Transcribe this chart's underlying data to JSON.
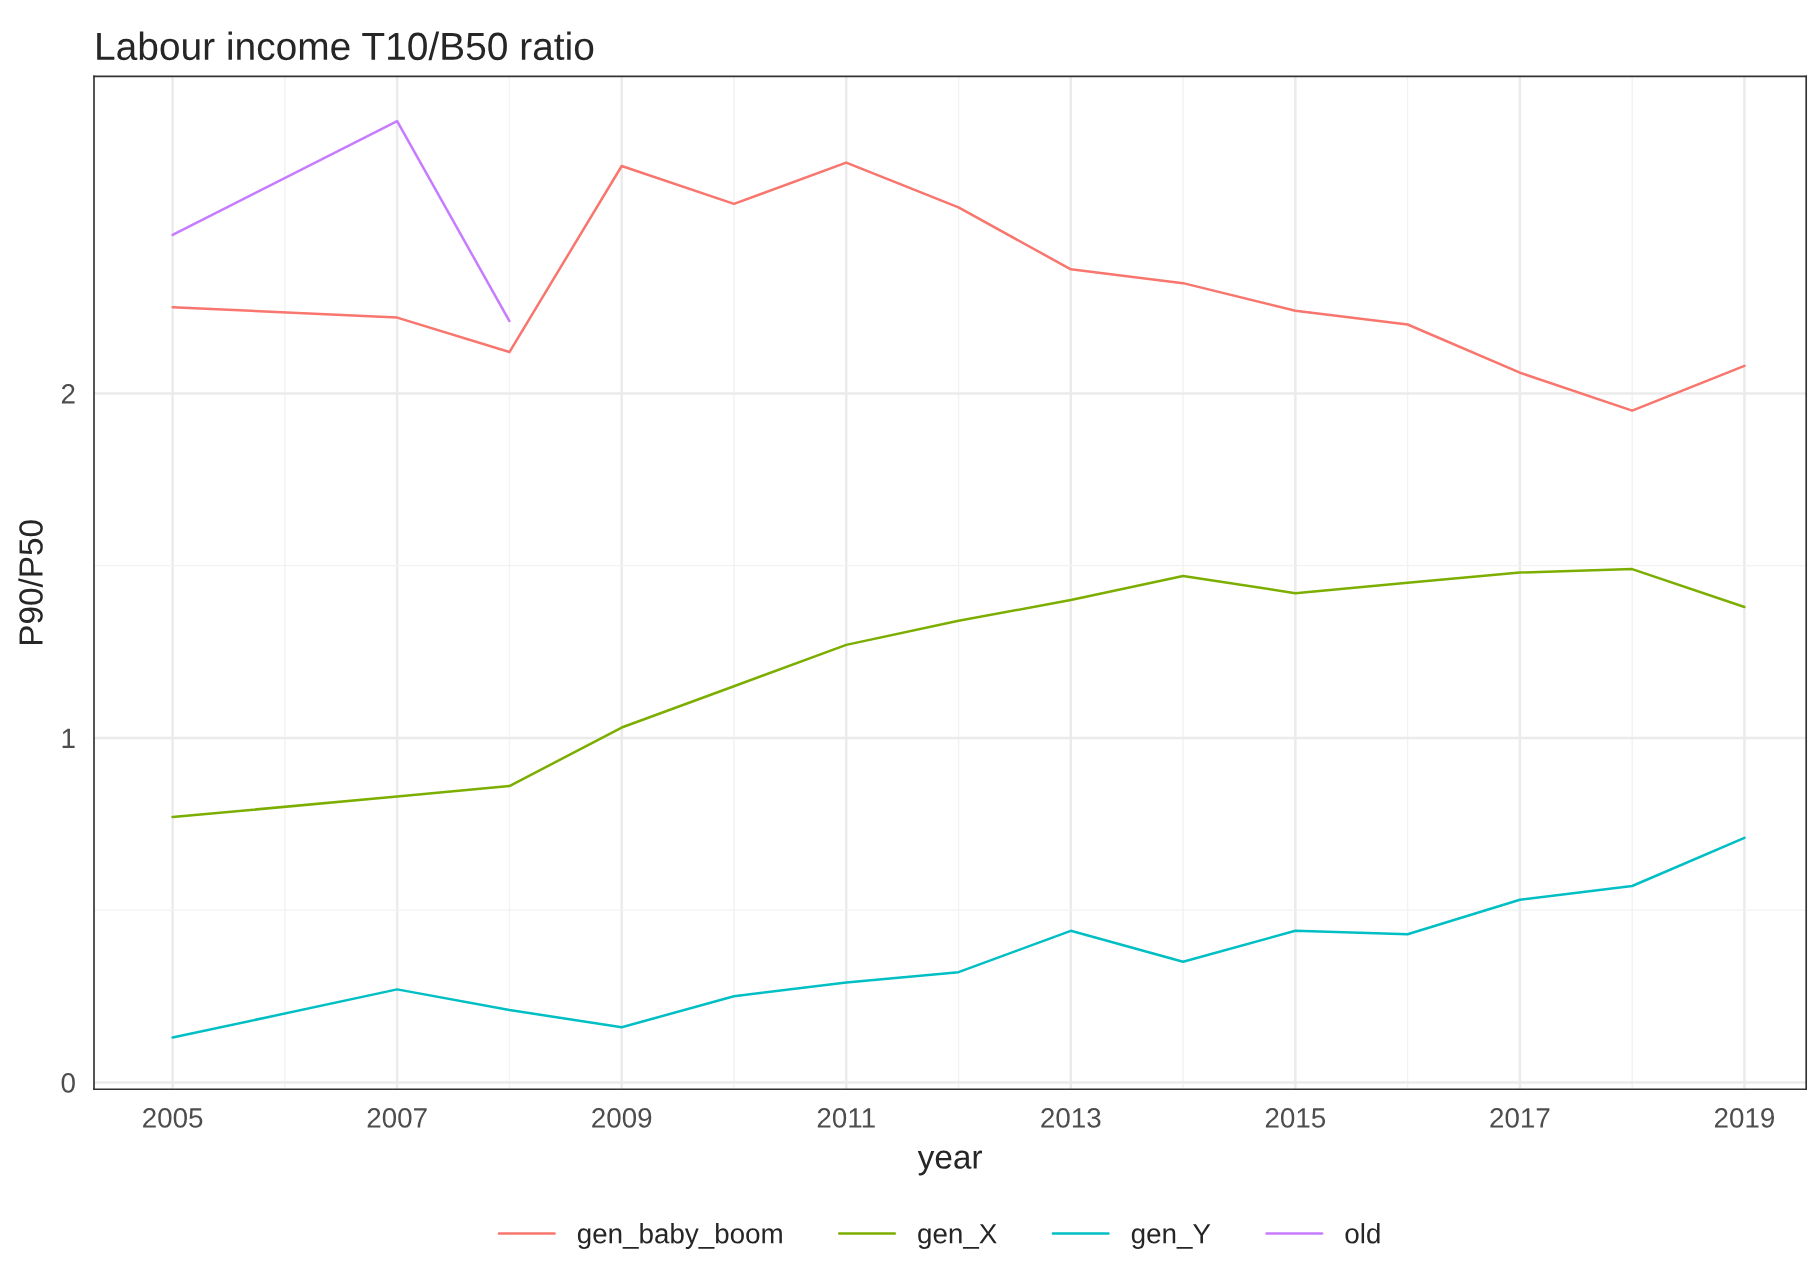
{
  "chart_data": {
    "type": "line",
    "title": "Labour income T10/B50 ratio",
    "xlabel": "year",
    "ylabel": "P90/P50",
    "xlim": [
      2004.3,
      2019.55
    ],
    "xticks": [
      2005,
      2007,
      2009,
      2011,
      2013,
      2015,
      2017,
      2019
    ],
    "ylim": [
      -0.02,
      2.92
    ],
    "yticks": [
      0,
      1,
      2
    ],
    "grid": true,
    "legend": "bottom",
    "series": [
      {
        "name": "gen_baby_boom",
        "color": "#f8766d",
        "x": [
          2005,
          2007,
          2008,
          2009,
          2010,
          2011,
          2012,
          2013,
          2014,
          2015,
          2016,
          2017,
          2018,
          2019
        ],
        "values": [
          2.25,
          2.22,
          2.12,
          2.66,
          2.55,
          2.67,
          2.54,
          2.36,
          2.32,
          2.24,
          2.2,
          2.06,
          1.95,
          2.08
        ]
      },
      {
        "name": "gen_X",
        "color": "#7cae00",
        "x": [
          2005,
          2007,
          2008,
          2009,
          2010,
          2011,
          2012,
          2013,
          2014,
          2015,
          2016,
          2017,
          2018,
          2019
        ],
        "values": [
          0.77,
          0.83,
          0.86,
          1.03,
          1.15,
          1.27,
          1.34,
          1.4,
          1.47,
          1.42,
          1.45,
          1.48,
          1.49,
          1.38
        ]
      },
      {
        "name": "gen_Y",
        "color": "#00bfc4",
        "x": [
          2005,
          2007,
          2008,
          2009,
          2010,
          2011,
          2012,
          2013,
          2014,
          2015,
          2016,
          2017,
          2018,
          2019
        ],
        "values": [
          0.13,
          0.27,
          0.21,
          0.16,
          0.25,
          0.29,
          0.32,
          0.44,
          0.35,
          0.44,
          0.43,
          0.53,
          0.57,
          0.71
        ]
      },
      {
        "name": "old",
        "color": "#c77cff",
        "x": [
          2005,
          2007,
          2008
        ],
        "values": [
          2.46,
          2.79,
          2.21
        ]
      }
    ]
  }
}
